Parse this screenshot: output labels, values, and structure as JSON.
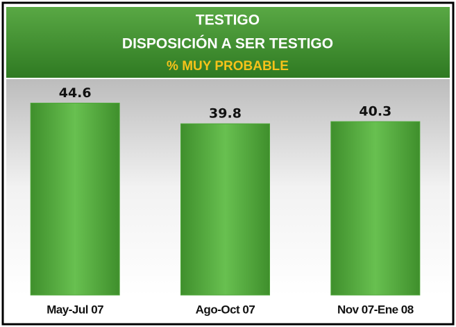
{
  "chart_data": {
    "type": "bar",
    "title": [
      "TESTIGO",
      "DISPOSICIÓN A SER TESTIGO"
    ],
    "subtitle": "% MUY PROBABLE",
    "categories": [
      "May-Jul 07",
      "Ago-Oct 07",
      "Nov 07-Ene 08"
    ],
    "values": [
      44.6,
      39.8,
      40.3
    ],
    "color": "#4fa83a",
    "ylim": [
      0,
      50
    ],
    "grid": false
  }
}
